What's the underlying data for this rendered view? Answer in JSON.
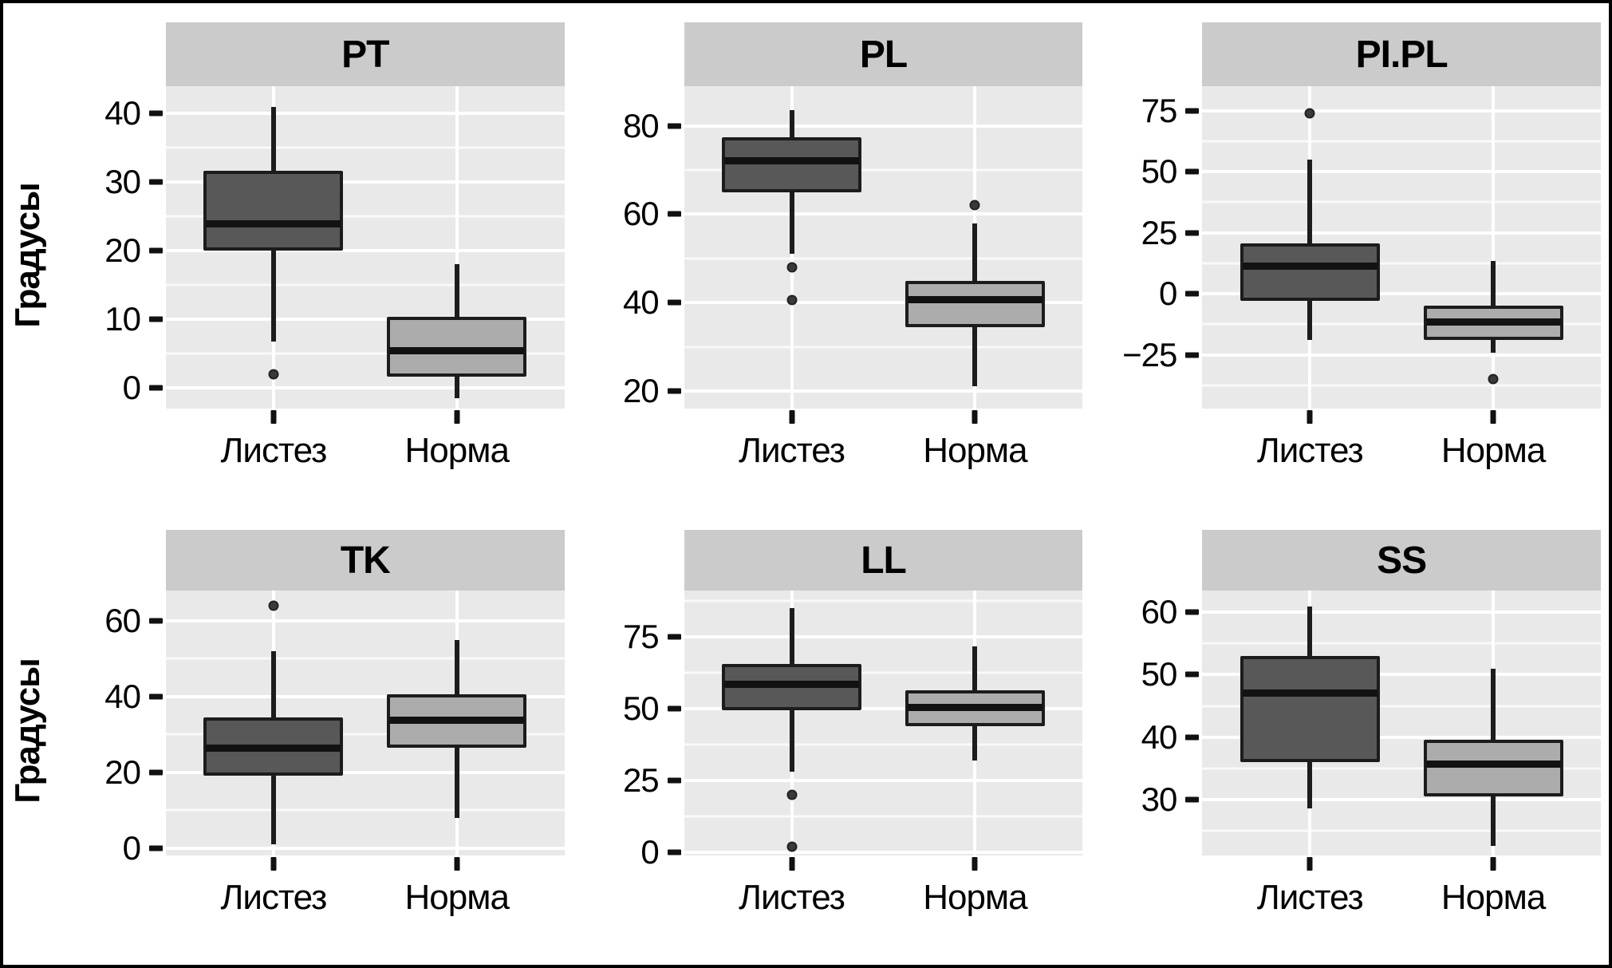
{
  "chart_data": {
    "type": "boxplot",
    "facets_layout": {
      "rows": 2,
      "cols": 3
    },
    "ylabel": "Градусы",
    "categories": [
      "Листез",
      "Норма"
    ],
    "category_x_percent": [
      27,
      73
    ],
    "box_halfwidth_percent": 17.5,
    "grid": "on",
    "colors": {
      "fill_dark": "#585858",
      "fill_light": "#acacac",
      "box_outline": "#1c1c1c",
      "median": "#121212",
      "panel_bg": "#e9e9e9",
      "strip_bg": "#cbcbcb",
      "grid_major": "#ffffff"
    },
    "panels": [
      {
        "title": "PT",
        "ylim": [
          -3,
          44
        ],
        "yticks": [
          {
            "v": 0,
            "label": "0"
          },
          {
            "v": 10,
            "label": "10"
          },
          {
            "v": 20,
            "label": "20"
          },
          {
            "v": 30,
            "label": "30"
          },
          {
            "v": 40,
            "label": "40"
          }
        ],
        "minor_ticks": [
          5,
          15,
          25,
          35
        ],
        "boxes": [
          {
            "category": "Листез",
            "shade": "dark",
            "whisker_low": 6.8,
            "q1": 20,
            "median": 23.6,
            "q3": 31.7,
            "whisker_high": 41,
            "outliers": [
              2
            ]
          },
          {
            "category": "Норма",
            "shade": "light",
            "whisker_low": -1.5,
            "q1": 1.7,
            "median": 5.2,
            "q3": 10.4,
            "whisker_high": 18,
            "outliers": []
          }
        ]
      },
      {
        "title": "PL",
        "ylim": [
          16,
          89
        ],
        "yticks": [
          {
            "v": 20,
            "label": "20"
          },
          {
            "v": 40,
            "label": "40"
          },
          {
            "v": 60,
            "label": "60"
          },
          {
            "v": 80,
            "label": "80"
          }
        ],
        "minor_ticks": [
          30,
          50,
          70
        ],
        "boxes": [
          {
            "category": "Листез",
            "shade": "dark",
            "whisker_low": 51,
            "q1": 65,
            "median": 72,
            "q3": 77.5,
            "whisker_high": 83.5,
            "outliers": [
              48,
              40.5
            ]
          },
          {
            "category": "Норма",
            "shade": "light",
            "whisker_low": 21,
            "q1": 34.5,
            "median": 40.5,
            "q3": 45,
            "whisker_high": 58,
            "outliers": [
              62
            ]
          }
        ]
      },
      {
        "title": "PI.PL",
        "ylim": [
          -47,
          85
        ],
        "yticks": [
          {
            "v": -25,
            "label": "−25"
          },
          {
            "v": 0,
            "label": "0"
          },
          {
            "v": 25,
            "label": "25"
          },
          {
            "v": 50,
            "label": "50"
          },
          {
            "v": 75,
            "label": "75"
          }
        ],
        "minor_ticks": [
          -37.5,
          -12.5,
          12.5,
          37.5,
          62.5
        ],
        "boxes": [
          {
            "category": "Листез",
            "shade": "dark",
            "whisker_low": -19,
            "q1": -3,
            "median": 11,
            "q3": 20.5,
            "whisker_high": 55,
            "outliers": [
              74
            ]
          },
          {
            "category": "Норма",
            "shade": "light",
            "whisker_low": -24,
            "q1": -19,
            "median": -12,
            "q3": -5,
            "whisker_high": 13.5,
            "outliers": [
              -35
            ]
          }
        ]
      },
      {
        "title": "TK",
        "ylim": [
          -2,
          68
        ],
        "yticks": [
          {
            "v": 0,
            "label": "0"
          },
          {
            "v": 20,
            "label": "20"
          },
          {
            "v": 40,
            "label": "40"
          },
          {
            "v": 60,
            "label": "60"
          }
        ],
        "minor_ticks": [
          10,
          30,
          50
        ],
        "boxes": [
          {
            "category": "Листез",
            "shade": "dark",
            "whisker_low": 1,
            "q1": 19,
            "median": 26,
            "q3": 34.5,
            "whisker_high": 52,
            "outliers": [
              64
            ]
          },
          {
            "category": "Норма",
            "shade": "light",
            "whisker_low": 8,
            "q1": 26.5,
            "median": 33.5,
            "q3": 40.5,
            "whisker_high": 55,
            "outliers": []
          }
        ]
      },
      {
        "title": "LL",
        "ylim": [
          -1,
          91
        ],
        "yticks": [
          {
            "v": 0,
            "label": "0"
          },
          {
            "v": 25,
            "label": "25"
          },
          {
            "v": 50,
            "label": "50"
          },
          {
            "v": 75,
            "label": "75"
          }
        ],
        "minor_ticks": [
          12.5,
          37.5,
          62.5,
          87.5
        ],
        "boxes": [
          {
            "category": "Листез",
            "shade": "dark",
            "whisker_low": 28,
            "q1": 49.5,
            "median": 58,
            "q3": 65.5,
            "whisker_high": 85,
            "outliers": [
              20,
              2
            ]
          },
          {
            "category": "Норма",
            "shade": "light",
            "whisker_low": 32,
            "q1": 44,
            "median": 50,
            "q3": 56.5,
            "whisker_high": 71.5,
            "outliers": []
          }
        ]
      },
      {
        "title": "SS",
        "ylim": [
          21,
          63.5
        ],
        "yticks": [
          {
            "v": 30,
            "label": "30"
          },
          {
            "v": 40,
            "label": "40"
          },
          {
            "v": 50,
            "label": "50"
          },
          {
            "v": 60,
            "label": "60"
          }
        ],
        "minor_ticks": [
          25,
          35,
          45,
          55
        ],
        "boxes": [
          {
            "category": "Листез",
            "shade": "dark",
            "whisker_low": 28.5,
            "q1": 36,
            "median": 47,
            "q3": 53,
            "whisker_high": 61,
            "outliers": []
          },
          {
            "category": "Норма",
            "shade": "light",
            "whisker_low": 22.5,
            "q1": 30.5,
            "median": 35.5,
            "q3": 39.5,
            "whisker_high": 51,
            "outliers": []
          }
        ]
      }
    ]
  }
}
